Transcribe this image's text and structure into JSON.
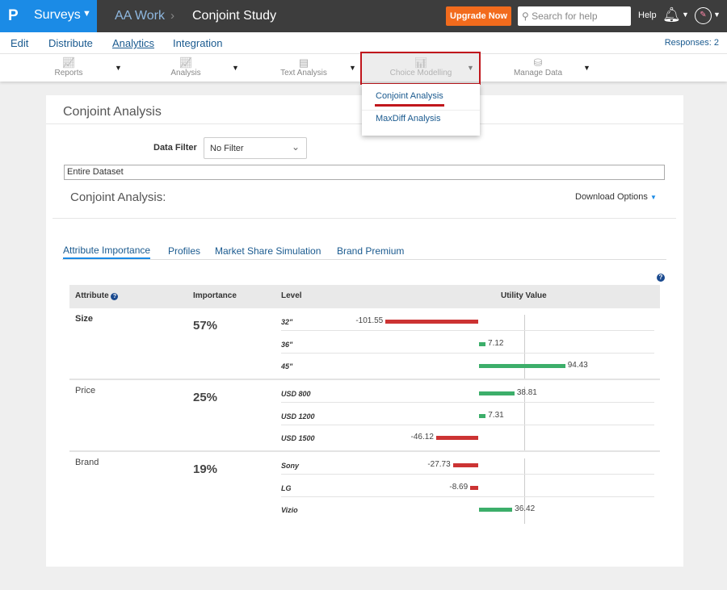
{
  "topbar": {
    "logo": "P",
    "app": "Surveys",
    "breadcrumb": [
      "AA Work",
      "Conjoint Study"
    ],
    "upgrade": "Upgrade Now",
    "search_placeholder": "Search for help",
    "help": "Help"
  },
  "nav": {
    "items": [
      "Edit",
      "Distribute",
      "Analytics",
      "Integration"
    ],
    "active": "Analytics",
    "responses": "Responses: 2"
  },
  "toolbar": {
    "items": [
      "Reports",
      "Analysis",
      "Text Analysis",
      "Choice Modelling",
      "Manage Data"
    ]
  },
  "dropdown": {
    "items": [
      "Conjoint Analysis",
      "MaxDiff Analysis"
    ]
  },
  "card": {
    "title": "Conjoint Analysis",
    "filter_label": "Data Filter",
    "filter_value": "No Filter",
    "dataset": "Entire Dataset",
    "section_title": "Conjoint Analysis:",
    "download": "Download Options"
  },
  "tabs": [
    "Attribute Importance",
    "Profiles",
    "Market Share Simulation",
    "Brand Premium"
  ],
  "table": {
    "headers": [
      "Attribute",
      "Importance",
      "Level",
      "Utility Value"
    ],
    "colors": {
      "positive": "#3cae6a",
      "negative": "#cc3333"
    },
    "groups": [
      {
        "attribute": "Size",
        "importance": "57%",
        "levels": [
          {
            "level": "32\"",
            "value": -101.55
          },
          {
            "level": "36\"",
            "value": 7.12
          },
          {
            "level": "45\"",
            "value": 94.43
          }
        ]
      },
      {
        "attribute": "Price",
        "importance": "25%",
        "levels": [
          {
            "level": "USD 800",
            "value": 38.81
          },
          {
            "level": "USD 1200",
            "value": 7.31
          },
          {
            "level": "USD 1500",
            "value": -46.12
          }
        ]
      },
      {
        "attribute": "Brand",
        "importance": "19%",
        "levels": [
          {
            "level": "Sony",
            "value": -27.73
          },
          {
            "level": "LG",
            "value": -8.69
          },
          {
            "level": "Vizio",
            "value": 36.42
          }
        ]
      }
    ]
  }
}
